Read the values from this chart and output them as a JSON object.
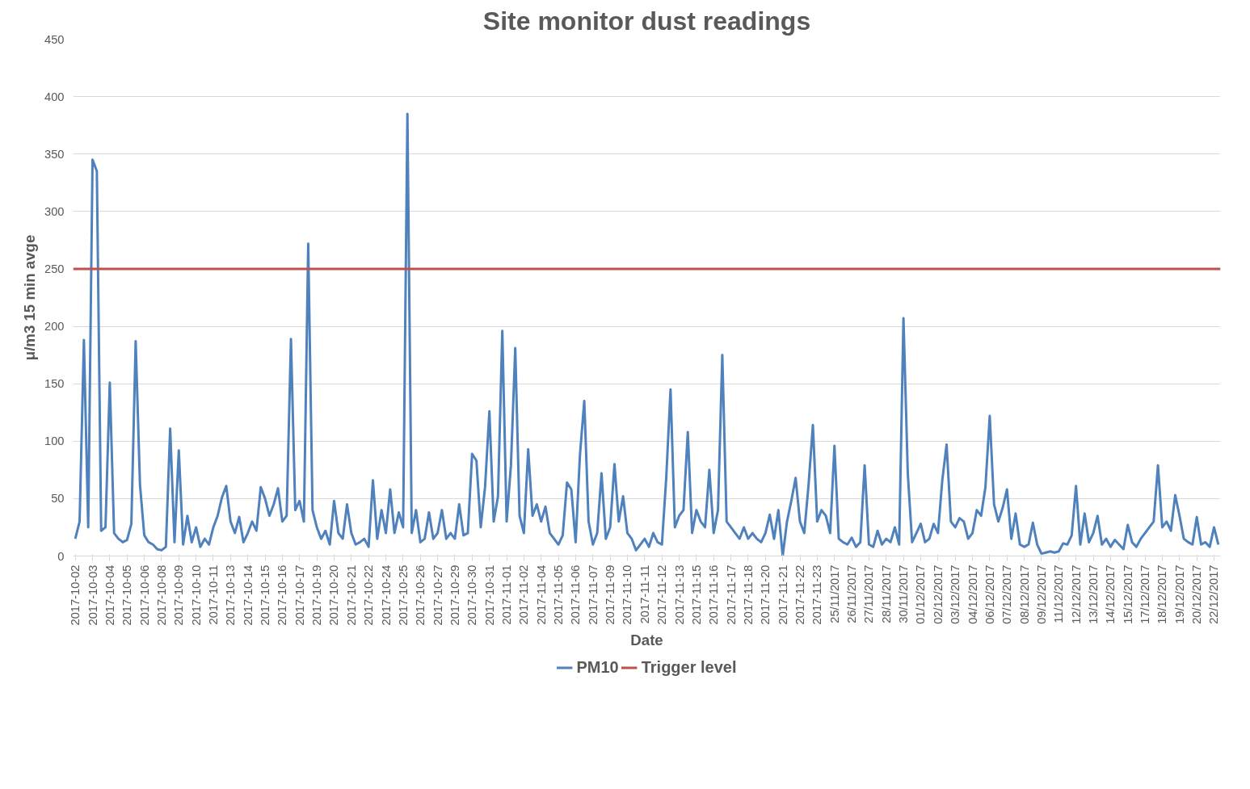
{
  "chart_data": {
    "type": "line",
    "title": "Site monitor dust readings",
    "xlabel": "Date",
    "ylabel": "μ/m3 15 min avge",
    "categories": [
      "2017-10-02",
      null,
      null,
      null,
      "2017-10-03",
      null,
      null,
      null,
      "2017-10-04",
      null,
      null,
      null,
      "2017-10-05",
      null,
      null,
      null,
      "2017-10-06",
      null,
      null,
      null,
      "2017-10-08",
      null,
      null,
      null,
      "2017-10-09",
      null,
      null,
      null,
      "2017-10-10",
      null,
      null,
      null,
      "2017-10-11",
      null,
      null,
      null,
      "2017-10-13",
      null,
      null,
      null,
      "2017-10-14",
      null,
      null,
      null,
      "2017-10-15",
      null,
      null,
      null,
      "2017-10-16",
      null,
      null,
      null,
      "2017-10-17",
      null,
      null,
      null,
      "2017-10-19",
      null,
      null,
      null,
      "2017-10-20",
      null,
      null,
      null,
      "2017-10-21",
      null,
      null,
      null,
      "2017-10-22",
      null,
      null,
      null,
      "2017-10-24",
      null,
      null,
      null,
      "2017-10-25",
      null,
      null,
      null,
      "2017-10-26",
      null,
      null,
      null,
      "2017-10-27",
      null,
      null,
      null,
      "2017-10-29",
      null,
      null,
      null,
      "2017-10-30",
      null,
      null,
      null,
      "2017-10-31",
      null,
      null,
      null,
      "2017-11-01",
      null,
      null,
      null,
      "2017-11-02",
      null,
      null,
      null,
      "2017-11-04",
      null,
      null,
      null,
      "2017-11-05",
      null,
      null,
      null,
      "2017-11-06",
      null,
      null,
      null,
      "2017-11-07",
      null,
      null,
      null,
      "2017-11-09",
      null,
      null,
      null,
      "2017-11-10",
      null,
      null,
      null,
      "2017-11-11",
      null,
      null,
      null,
      "2017-11-12",
      null,
      null,
      null,
      "2017-11-13",
      null,
      null,
      null,
      "2017-11-15",
      null,
      null,
      null,
      "2017-11-16",
      null,
      null,
      null,
      "2017-11-17",
      null,
      null,
      null,
      "2017-11-18",
      null,
      null,
      null,
      "2017-11-20",
      null,
      null,
      null,
      "2017-11-21",
      null,
      null,
      null,
      "2017-11-22",
      null,
      null,
      null,
      "2017-11-23",
      null,
      null,
      null,
      "25/11/2017",
      null,
      null,
      null,
      "26/11/2017",
      null,
      null,
      null,
      "27/11/2017",
      null,
      null,
      null,
      "28/11/2017",
      null,
      null,
      null,
      "30/11/2017",
      null,
      null,
      null,
      "01/12/2017",
      null,
      null,
      null,
      "02/12/2017",
      null,
      null,
      null,
      "03/12/2017",
      null,
      null,
      null,
      "04/12/2017",
      null,
      null,
      null,
      "06/12/2017",
      null,
      null,
      null,
      "07/12/2017",
      null,
      null,
      null,
      "08/12/2017",
      null,
      null,
      null,
      "09/12/2017",
      null,
      null,
      null,
      "11/12/2017",
      null,
      null,
      null,
      "12/12/2017",
      null,
      null,
      null,
      "13/12/2017",
      null,
      null,
      null,
      "14/12/2017",
      null,
      null,
      null,
      "15/12/2017",
      null,
      null,
      null,
      "17/12/2017",
      null,
      null,
      null,
      "18/12/2017",
      null,
      null,
      null,
      "19/12/2017",
      null,
      null,
      null,
      "20/12/2017",
      null,
      null,
      null,
      "22/12/2017",
      null
    ],
    "series": [
      {
        "name": "PM10",
        "color": "#4f81bd",
        "values": [
          15,
          30,
          188,
          25,
          345,
          335,
          22,
          25,
          151,
          20,
          15,
          12,
          14,
          28,
          187,
          62,
          18,
          12,
          10,
          6,
          5,
          8,
          111,
          12,
          92,
          10,
          35,
          12,
          25,
          8,
          15,
          10,
          25,
          35,
          51,
          61,
          30,
          20,
          34,
          12,
          20,
          30,
          22,
          60,
          50,
          35,
          45,
          59,
          30,
          35,
          189,
          40,
          48,
          30,
          272,
          40,
          25,
          15,
          22,
          10,
          48,
          20,
          15,
          45,
          20,
          10,
          12,
          15,
          8,
          66,
          15,
          40,
          20,
          58,
          20,
          38,
          25,
          385,
          20,
          40,
          12,
          15,
          38,
          15,
          20,
          40,
          15,
          20,
          15,
          45,
          18,
          20,
          89,
          83,
          25,
          60,
          126,
          30,
          52,
          196,
          30,
          79,
          181,
          35,
          20,
          93,
          35,
          45,
          30,
          43,
          20,
          15,
          10,
          18,
          64,
          58,
          12,
          88,
          135,
          30,
          10,
          20,
          72,
          15,
          25,
          80,
          30,
          52,
          20,
          15,
          5,
          10,
          15,
          8,
          20,
          12,
          10,
          68,
          145,
          25,
          35,
          40,
          108,
          20,
          40,
          30,
          25,
          75,
          20,
          40,
          175,
          30,
          25,
          20,
          15,
          25,
          15,
          20,
          15,
          12,
          20,
          36,
          15,
          40,
          0,
          30,
          48,
          68,
          30,
          20,
          62,
          114,
          30,
          40,
          35,
          20,
          96,
          15,
          12,
          10,
          16,
          8,
          12,
          79,
          10,
          8,
          22,
          10,
          15,
          12,
          25,
          10,
          207,
          72,
          12,
          20,
          28,
          12,
          15,
          28,
          20,
          66,
          97,
          30,
          25,
          33,
          30,
          15,
          20,
          40,
          35,
          60,
          122,
          45,
          30,
          42,
          58,
          15,
          37,
          10,
          8,
          10,
          29,
          10,
          2,
          3,
          4,
          3,
          4,
          11,
          10,
          18,
          61,
          10,
          37,
          12,
          20,
          35,
          10,
          15,
          8,
          14,
          10,
          6,
          27,
          12,
          8,
          15,
          20,
          25,
          30,
          79,
          25,
          30,
          22,
          53,
          35,
          15,
          12,
          10,
          34,
          10,
          12,
          8,
          25,
          10
        ]
      }
    ],
    "ref_lines": [
      {
        "axis": "y",
        "value": 250,
        "label": "Trigger level",
        "color": "#c0504d"
      }
    ],
    "ylim": [
      0,
      450
    ],
    "yticks": [
      0,
      50,
      100,
      150,
      200,
      250,
      300,
      350,
      400,
      450
    ],
    "grid": "y",
    "legend": "bottom"
  }
}
